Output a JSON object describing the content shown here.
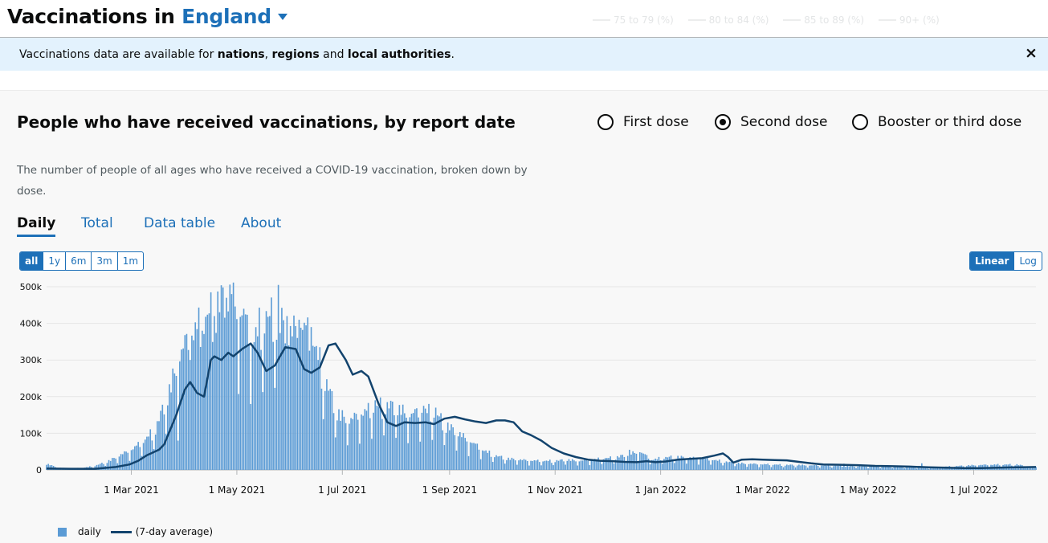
{
  "header": {
    "title_prefix": "Vaccinations in",
    "area": "England"
  },
  "background_legend": [
    "75 to 79 (%)",
    "80 to 84 (%)",
    "85 to 89 (%)",
    "90+ (%)"
  ],
  "banner": {
    "text_1": "Vaccinations data are available for ",
    "link_1": "nations",
    "text_2": ", ",
    "link_2": "regions",
    "text_3": " and ",
    "link_3": "local authorities",
    "text_4": ".",
    "close": "×"
  },
  "card": {
    "title": "People who have received vaccinations, by report date",
    "description": "The number of people of all ages who have received a COVID-19 vaccination, broken down by dose.",
    "dose_options": [
      {
        "label": "First dose",
        "selected": false
      },
      {
        "label": "Second dose",
        "selected": true
      },
      {
        "label": "Booster or third dose",
        "selected": false
      }
    ],
    "tabs": [
      {
        "label": "Daily",
        "active": true
      },
      {
        "label": "Total",
        "active": false
      },
      {
        "label": "Data table",
        "active": false
      },
      {
        "label": "About",
        "active": false
      }
    ],
    "ranges": [
      {
        "label": "all",
        "active": true
      },
      {
        "label": "1y",
        "active": false
      },
      {
        "label": "6m",
        "active": false
      },
      {
        "label": "3m",
        "active": false
      },
      {
        "label": "1m",
        "active": false
      }
    ],
    "scales": [
      {
        "label": "Linear",
        "active": true
      },
      {
        "label": "Log",
        "active": false
      }
    ]
  },
  "chart_data": {
    "type": "bar",
    "title": "People who have received vaccinations, by report date",
    "x_range": [
      "2021-01-11",
      "2022-08-06"
    ],
    "y_range": [
      0,
      500000
    ],
    "y_ticks": [
      {
        "value": 0,
        "label": "0"
      },
      {
        "value": 100000,
        "label": "100k"
      },
      {
        "value": 200000,
        "label": "200k"
      },
      {
        "value": 300000,
        "label": "300k"
      },
      {
        "value": 400000,
        "label": "400k"
      },
      {
        "value": 500000,
        "label": "500k"
      }
    ],
    "x_ticks": [
      {
        "date": "2021-03-01",
        "label": "1 Mar 2021"
      },
      {
        "date": "2021-05-01",
        "label": "1 May 2021"
      },
      {
        "date": "2021-07-01",
        "label": "1 Jul 2021"
      },
      {
        "date": "2021-09-01",
        "label": "1 Sep 2021"
      },
      {
        "date": "2021-11-01",
        "label": "1 Nov 2021"
      },
      {
        "date": "2022-01-01",
        "label": "1 Jan 2022"
      },
      {
        "date": "2022-03-01",
        "label": "1 Mar 2022"
      },
      {
        "date": "2022-05-01",
        "label": "1 May 2022"
      },
      {
        "date": "2022-07-01",
        "label": "1 Jul 2022"
      }
    ],
    "grid": true,
    "legend_position": "bottom-left",
    "series": [
      {
        "name": "daily",
        "kind": "bar",
        "color": "#5b9bd5",
        "points": [
          [
            "2021-01-11",
            15000
          ],
          [
            "2021-01-18",
            5000
          ],
          [
            "2021-01-25",
            4000
          ],
          [
            "2021-02-01",
            5000
          ],
          [
            "2021-02-08",
            10000
          ],
          [
            "2021-02-15",
            20000
          ],
          [
            "2021-02-22",
            35000
          ],
          [
            "2021-03-01",
            50000
          ],
          [
            "2021-03-08",
            70000
          ],
          [
            "2021-03-15",
            100000
          ],
          [
            "2021-03-22",
            180000
          ],
          [
            "2021-03-29",
            280000
          ],
          [
            "2021-04-05",
            340000
          ],
          [
            "2021-04-12",
            360000
          ],
          [
            "2021-04-19",
            400000
          ],
          [
            "2021-04-26",
            430000
          ],
          [
            "2021-05-03",
            390000
          ],
          [
            "2021-05-10",
            320000
          ],
          [
            "2021-05-17",
            370000
          ],
          [
            "2021-05-24",
            380000
          ],
          [
            "2021-05-31",
            330000
          ],
          [
            "2021-06-07",
            360000
          ],
          [
            "2021-06-14",
            320000
          ],
          [
            "2021-06-21",
            220000
          ],
          [
            "2021-06-28",
            140000
          ],
          [
            "2021-07-05",
            120000
          ],
          [
            "2021-07-12",
            140000
          ],
          [
            "2021-07-19",
            150000
          ],
          [
            "2021-07-26",
            160000
          ],
          [
            "2021-08-02",
            150000
          ],
          [
            "2021-08-09",
            135000
          ],
          [
            "2021-08-16",
            145000
          ],
          [
            "2021-08-23",
            140000
          ],
          [
            "2021-08-30",
            110000
          ],
          [
            "2021-09-06",
            90000
          ],
          [
            "2021-09-13",
            70000
          ],
          [
            "2021-09-20",
            50000
          ],
          [
            "2021-09-27",
            35000
          ],
          [
            "2021-10-04",
            28000
          ],
          [
            "2021-10-11",
            25000
          ],
          [
            "2021-10-18",
            23000
          ],
          [
            "2021-10-25",
            22000
          ],
          [
            "2021-11-01",
            22000
          ],
          [
            "2021-11-08",
            25000
          ],
          [
            "2021-11-15",
            22000
          ],
          [
            "2021-11-22",
            25000
          ],
          [
            "2021-11-29",
            28000
          ],
          [
            "2021-12-06",
            30000
          ],
          [
            "2021-12-13",
            38000
          ],
          [
            "2021-12-20",
            45000
          ],
          [
            "2021-12-27",
            25000
          ],
          [
            "2022-01-03",
            30000
          ],
          [
            "2022-01-10",
            32000
          ],
          [
            "2022-01-17",
            30000
          ],
          [
            "2022-01-24",
            28000
          ],
          [
            "2022-01-31",
            25000
          ],
          [
            "2022-02-07",
            20000
          ],
          [
            "2022-02-14",
            17000
          ],
          [
            "2022-02-21",
            15000
          ],
          [
            "2022-03-01",
            14000
          ],
          [
            "2022-03-08",
            13000
          ],
          [
            "2022-03-15",
            12000
          ],
          [
            "2022-03-22",
            12000
          ],
          [
            "2022-03-29",
            11000
          ],
          [
            "2022-04-05",
            11000
          ],
          [
            "2022-04-12",
            10000
          ],
          [
            "2022-04-19",
            9000
          ],
          [
            "2022-04-26",
            9000
          ],
          [
            "2022-05-03",
            8000
          ],
          [
            "2022-05-10",
            8000
          ],
          [
            "2022-05-17",
            8000
          ],
          [
            "2022-05-24",
            7000
          ],
          [
            "2022-05-31",
            6000
          ],
          [
            "2022-06-07",
            6000
          ],
          [
            "2022-06-14",
            8000
          ],
          [
            "2022-06-21",
            9000
          ],
          [
            "2022-06-28",
            11000
          ],
          [
            "2022-07-05",
            12000
          ],
          [
            "2022-07-12",
            13000
          ],
          [
            "2022-07-19",
            13000
          ],
          [
            "2022-07-26",
            13000
          ],
          [
            "2022-08-02",
            8000
          ]
        ],
        "spikes": [
          [
            "2021-03-28",
            80000
          ],
          [
            "2021-04-04",
            300000
          ],
          [
            "2021-04-11",
            380000
          ],
          [
            "2021-04-18",
            420000
          ],
          [
            "2021-04-25",
            470000
          ],
          [
            "2021-04-28",
            480000
          ],
          [
            "2021-05-05",
            440000
          ],
          [
            "2021-05-20",
            420000
          ],
          [
            "2021-05-25",
            505000
          ],
          [
            "2021-05-30",
            420000
          ],
          [
            "2021-06-06",
            410000
          ],
          [
            "2021-06-13",
            390000
          ],
          [
            "2021-07-20",
            190000
          ],
          [
            "2021-07-27",
            185000
          ],
          [
            "2021-08-17",
            175000
          ],
          [
            "2021-08-24",
            170000
          ],
          [
            "2021-12-14",
            55000
          ],
          [
            "2022-04-17",
            17000
          ],
          [
            "2022-06-01",
            18000
          ]
        ]
      },
      {
        "name": "(7-day average)",
        "kind": "line",
        "color": "#12436d",
        "points": [
          [
            "2021-01-11",
            4000
          ],
          [
            "2021-01-25",
            3000
          ],
          [
            "2021-02-08",
            3000
          ],
          [
            "2021-02-20",
            8000
          ],
          [
            "2021-02-28",
            15000
          ],
          [
            "2021-03-05",
            25000
          ],
          [
            "2021-03-10",
            40000
          ],
          [
            "2021-03-17",
            55000
          ],
          [
            "2021-03-20",
            70000
          ],
          [
            "2021-03-27",
            150000
          ],
          [
            "2021-04-01",
            220000
          ],
          [
            "2021-04-04",
            240000
          ],
          [
            "2021-04-08",
            210000
          ],
          [
            "2021-04-12",
            200000
          ],
          [
            "2021-04-16",
            300000
          ],
          [
            "2021-04-18",
            310000
          ],
          [
            "2021-04-22",
            300000
          ],
          [
            "2021-04-26",
            320000
          ],
          [
            "2021-04-29",
            310000
          ],
          [
            "2021-05-04",
            330000
          ],
          [
            "2021-05-09",
            345000
          ],
          [
            "2021-05-13",
            320000
          ],
          [
            "2021-05-18",
            270000
          ],
          [
            "2021-05-23",
            285000
          ],
          [
            "2021-05-29",
            335000
          ],
          [
            "2021-06-04",
            330000
          ],
          [
            "2021-06-09",
            275000
          ],
          [
            "2021-06-13",
            265000
          ],
          [
            "2021-06-18",
            280000
          ],
          [
            "2021-06-23",
            340000
          ],
          [
            "2021-06-27",
            345000
          ],
          [
            "2021-07-03",
            300000
          ],
          [
            "2021-07-07",
            260000
          ],
          [
            "2021-07-12",
            270000
          ],
          [
            "2021-07-16",
            255000
          ],
          [
            "2021-07-22",
            180000
          ],
          [
            "2021-07-27",
            130000
          ],
          [
            "2021-08-01",
            120000
          ],
          [
            "2021-08-06",
            130000
          ],
          [
            "2021-08-12",
            128000
          ],
          [
            "2021-08-18",
            130000
          ],
          [
            "2021-08-23",
            125000
          ],
          [
            "2021-08-29",
            140000
          ],
          [
            "2021-09-04",
            145000
          ],
          [
            "2021-09-10",
            138000
          ],
          [
            "2021-09-16",
            132000
          ],
          [
            "2021-09-22",
            128000
          ],
          [
            "2021-09-28",
            135000
          ],
          [
            "2021-10-03",
            135000
          ],
          [
            "2021-10-08",
            130000
          ],
          [
            "2021-10-13",
            105000
          ],
          [
            "2021-10-18",
            95000
          ],
          [
            "2021-10-24",
            80000
          ],
          [
            "2021-10-30",
            60000
          ],
          [
            "2021-11-06",
            45000
          ],
          [
            "2021-11-13",
            35000
          ],
          [
            "2021-11-20",
            28000
          ],
          [
            "2021-11-27",
            25000
          ],
          [
            "2021-12-04",
            24000
          ],
          [
            "2021-12-11",
            22000
          ],
          [
            "2021-12-18",
            21000
          ],
          [
            "2021-12-24",
            24000
          ],
          [
            "2021-12-29",
            21000
          ],
          [
            "2022-01-04",
            23000
          ],
          [
            "2022-01-11",
            28000
          ],
          [
            "2022-01-18",
            30000
          ],
          [
            "2022-01-25",
            32000
          ],
          [
            "2022-02-01",
            39000
          ],
          [
            "2022-02-06",
            45000
          ],
          [
            "2022-02-09",
            35000
          ],
          [
            "2022-02-12",
            20000
          ],
          [
            "2022-02-17",
            28000
          ],
          [
            "2022-02-23",
            29000
          ],
          [
            "2022-03-01",
            28000
          ],
          [
            "2022-03-08",
            27000
          ],
          [
            "2022-03-15",
            26000
          ],
          [
            "2022-03-22",
            22000
          ],
          [
            "2022-03-29",
            18000
          ],
          [
            "2022-04-05",
            15000
          ],
          [
            "2022-04-15",
            14000
          ],
          [
            "2022-04-25",
            13000
          ],
          [
            "2022-05-05",
            11000
          ],
          [
            "2022-05-15",
            10000
          ],
          [
            "2022-05-25",
            9000
          ],
          [
            "2022-06-05",
            7000
          ],
          [
            "2022-06-15",
            6000
          ],
          [
            "2022-06-25",
            5000
          ],
          [
            "2022-07-05",
            5000
          ],
          [
            "2022-07-15",
            6000
          ],
          [
            "2022-07-25",
            7000
          ],
          [
            "2022-08-06",
            8000
          ]
        ]
      }
    ]
  }
}
